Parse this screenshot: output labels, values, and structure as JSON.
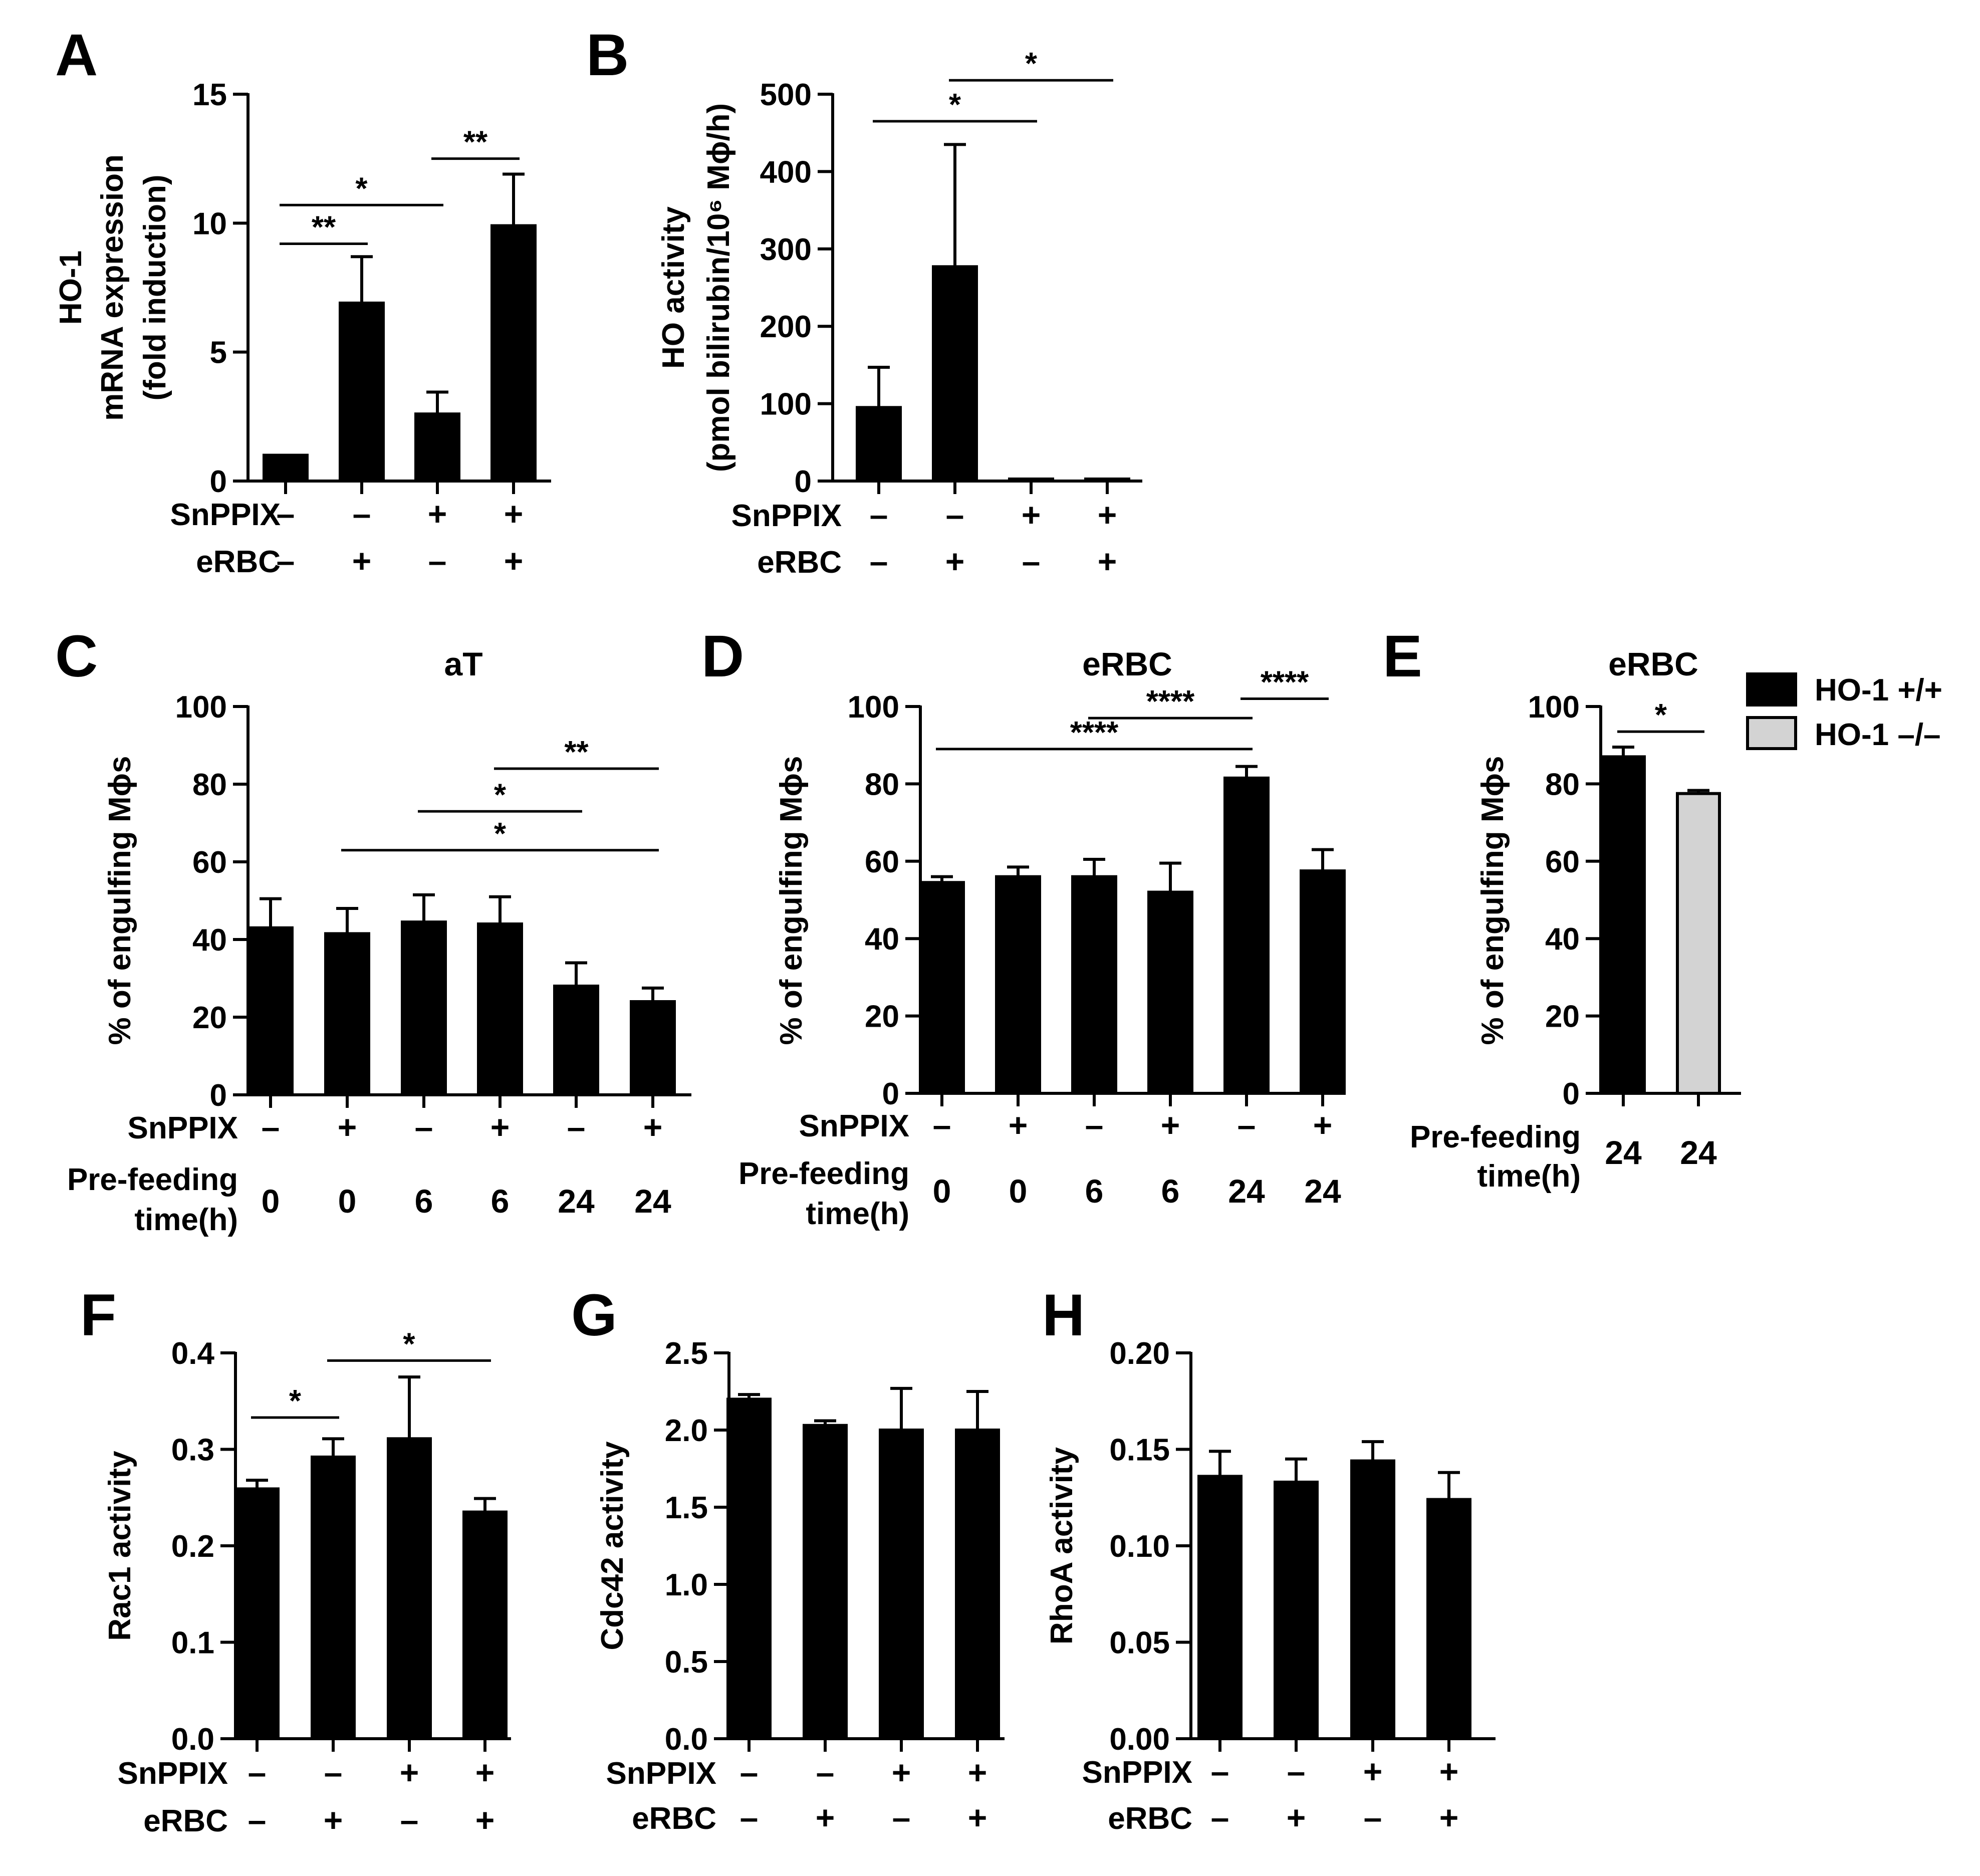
{
  "figure": {
    "panels": [
      "A",
      "B",
      "C",
      "D",
      "E",
      "F",
      "G",
      "H"
    ]
  },
  "legend": {
    "items": [
      {
        "label": "HO-1 +/+",
        "color": "#000000"
      },
      {
        "label": "HO-1 –/–",
        "color": "#d3d3d3"
      }
    ]
  },
  "chart_data": [
    {
      "panel": "A",
      "type": "bar",
      "title": "",
      "ylabel_lines": [
        "HO-1",
        "mRNA expression",
        "(fold induction)"
      ],
      "ylim": [
        0,
        15
      ],
      "yticks": [
        "0",
        "5",
        "10",
        "15"
      ],
      "values": [
        1.0,
        6.9,
        2.6,
        9.9
      ],
      "errors": [
        0.0,
        1.8,
        0.85,
        2.0
      ],
      "colors": [
        "#000000",
        "#000000",
        "#000000",
        "#000000"
      ],
      "rows": [
        {
          "label": "SnPPIX",
          "cells": [
            "–",
            "–",
            "+",
            "+"
          ]
        },
        {
          "label": "eRBC",
          "cells": [
            "–",
            "+",
            "–",
            "+"
          ]
        }
      ],
      "significance": [
        {
          "from": 0,
          "to": 1,
          "y": 9.2,
          "label": "**"
        },
        {
          "from": 0,
          "to": 2,
          "y": 10.7,
          "label": "*"
        },
        {
          "from": 2,
          "to": 3,
          "y": 12.5,
          "label": "**"
        }
      ]
    },
    {
      "panel": "B",
      "type": "bar",
      "title": "",
      "ylabel_lines": [
        "HO activity",
        "(pmol bilirubin/10⁶ Mϕ/h)"
      ],
      "ylim": [
        0,
        500
      ],
      "yticks": [
        "0",
        "100",
        "200",
        "300",
        "400",
        "500"
      ],
      "values": [
        95,
        277,
        2,
        2
      ],
      "errors": [
        52,
        158,
        0,
        0
      ],
      "colors": [
        "#000000",
        "#000000",
        "#000000",
        "#000000"
      ],
      "rows": [
        {
          "label": "SnPPIX",
          "cells": [
            "–",
            "–",
            "+",
            "+"
          ]
        },
        {
          "label": "eRBC",
          "cells": [
            "–",
            "+",
            "–",
            "+"
          ]
        }
      ],
      "significance": [
        {
          "from": 0,
          "to": 2,
          "y": 465,
          "label": "*"
        },
        {
          "from": 1,
          "to": 3,
          "y": 518,
          "label": "*"
        }
      ]
    },
    {
      "panel": "C",
      "type": "bar",
      "title": "aT",
      "ylabel_lines": [
        "% of engulfing Mϕs"
      ],
      "ylim": [
        0,
        100
      ],
      "yticks": [
        "0",
        "20",
        "40",
        "60",
        "80",
        "100"
      ],
      "values": [
        43,
        41.5,
        44.5,
        44,
        28,
        24
      ],
      "errors": [
        7.5,
        6.5,
        7,
        7,
        6,
        3.5
      ],
      "colors": [
        "#000000",
        "#000000",
        "#000000",
        "#000000",
        "#000000",
        "#000000"
      ],
      "rows": [
        {
          "label": "SnPPIX",
          "cells": [
            "–",
            "+",
            "–",
            "+",
            "–",
            "+"
          ]
        },
        {
          "label_lines": [
            "Pre-feeding",
            "time(h)"
          ],
          "cells": [
            "0",
            "0",
            "6",
            "6",
            "24",
            "24"
          ]
        }
      ],
      "significance": [
        {
          "from": 1,
          "to": 5,
          "y": 63,
          "label": "*"
        },
        {
          "from": 2,
          "to": 4,
          "y": 73,
          "label": "*"
        },
        {
          "from": 3,
          "to": 5,
          "y": 84,
          "label": "**"
        }
      ]
    },
    {
      "panel": "D",
      "type": "bar",
      "title": "eRBC",
      "ylabel_lines": [
        "% of engulfing Mϕs"
      ],
      "ylim": [
        0,
        100
      ],
      "yticks": [
        "0",
        "20",
        "40",
        "60",
        "80",
        "100"
      ],
      "values": [
        54.5,
        56,
        56,
        52,
        81.5,
        57.5
      ],
      "errors": [
        1.5,
        2.5,
        4.5,
        7.5,
        3,
        5.5
      ],
      "colors": [
        "#000000",
        "#000000",
        "#000000",
        "#000000",
        "#000000",
        "#000000"
      ],
      "rows": [
        {
          "label": "SnPPIX",
          "cells": [
            "–",
            "+",
            "–",
            "+",
            "–",
            "+"
          ]
        },
        {
          "label_lines": [
            "Pre-feeding",
            "time(h)"
          ],
          "cells": [
            "0",
            "0",
            "6",
            "6",
            "24",
            "24"
          ]
        }
      ],
      "significance": [
        {
          "from": 0,
          "to": 4,
          "y": 89,
          "label": "****"
        },
        {
          "from": 2,
          "to": 4,
          "y": 97,
          "label": "****"
        },
        {
          "from": 4,
          "to": 5,
          "y": 102,
          "label": "****"
        }
      ]
    },
    {
      "panel": "E",
      "type": "bar",
      "title": "eRBC",
      "ylabel_lines": [
        "% of engulfing Mϕs"
      ],
      "ylim": [
        0,
        100
      ],
      "yticks": [
        "0",
        "20",
        "40",
        "60",
        "80",
        "100"
      ],
      "values": [
        87,
        77.5
      ],
      "errors": [
        2.5,
        0.8
      ],
      "colors": [
        "#000000",
        "#d3d3d3"
      ],
      "rows": [
        {
          "label_lines": [
            "Pre-feeding",
            "time(h)"
          ],
          "cells": [
            "24",
            "24"
          ]
        }
      ],
      "significance": [
        {
          "from": 0,
          "to": 1,
          "y": 93.5,
          "label": "*"
        }
      ]
    },
    {
      "panel": "F",
      "type": "bar",
      "title": "",
      "ylabel_lines": [
        "Rac1 activity"
      ],
      "ylim": [
        0,
        0.4
      ],
      "yticks": [
        "0.0",
        "0.1",
        "0.2",
        "0.3",
        "0.4"
      ],
      "values": [
        0.259,
        0.292,
        0.311,
        0.235
      ],
      "errors": [
        0.009,
        0.019,
        0.064,
        0.014
      ],
      "colors": [
        "#000000",
        "#000000",
        "#000000",
        "#000000"
      ],
      "rows": [
        {
          "label": "SnPPIX",
          "cells": [
            "–",
            "–",
            "+",
            "+"
          ]
        },
        {
          "label": "eRBC",
          "cells": [
            "–",
            "+",
            "–",
            "+"
          ]
        }
      ],
      "significance": [
        {
          "from": 0,
          "to": 1,
          "y": 0.333,
          "label": "*"
        },
        {
          "from": 1,
          "to": 3,
          "y": 0.392,
          "label": "*"
        }
      ]
    },
    {
      "panel": "G",
      "type": "bar",
      "title": "",
      "ylabel_lines": [
        "Cdc42 activity"
      ],
      "ylim": [
        0,
        2.5
      ],
      "yticks": [
        "0.0",
        "0.5",
        "1.0",
        "1.5",
        "2.0",
        "2.5"
      ],
      "values": [
        2.2,
        2.03,
        2.0,
        2.0
      ],
      "errors": [
        0.03,
        0.03,
        0.27,
        0.25
      ],
      "colors": [
        "#000000",
        "#000000",
        "#000000",
        "#000000"
      ],
      "rows": [
        {
          "label": "SnPPIX",
          "cells": [
            "–",
            "–",
            "+",
            "+"
          ]
        },
        {
          "label": "eRBC",
          "cells": [
            "–",
            "+",
            "–",
            "+"
          ]
        }
      ],
      "significance": []
    },
    {
      "panel": "H",
      "type": "bar",
      "title": "",
      "ylabel_lines": [
        "RhoA activity"
      ],
      "ylim": [
        0,
        0.2
      ],
      "yticks": [
        "0.00",
        "0.05",
        "0.10",
        "0.15",
        "0.20"
      ],
      "values": [
        0.136,
        0.133,
        0.144,
        0.124
      ],
      "errors": [
        0.013,
        0.012,
        0.01,
        0.014
      ],
      "colors": [
        "#000000",
        "#000000",
        "#000000",
        "#000000"
      ],
      "rows": [
        {
          "label": "SnPPIX",
          "cells": [
            "–",
            "–",
            "+",
            "+"
          ]
        },
        {
          "label": "eRBC",
          "cells": [
            "–",
            "+",
            "–",
            "+"
          ]
        }
      ],
      "significance": []
    }
  ]
}
